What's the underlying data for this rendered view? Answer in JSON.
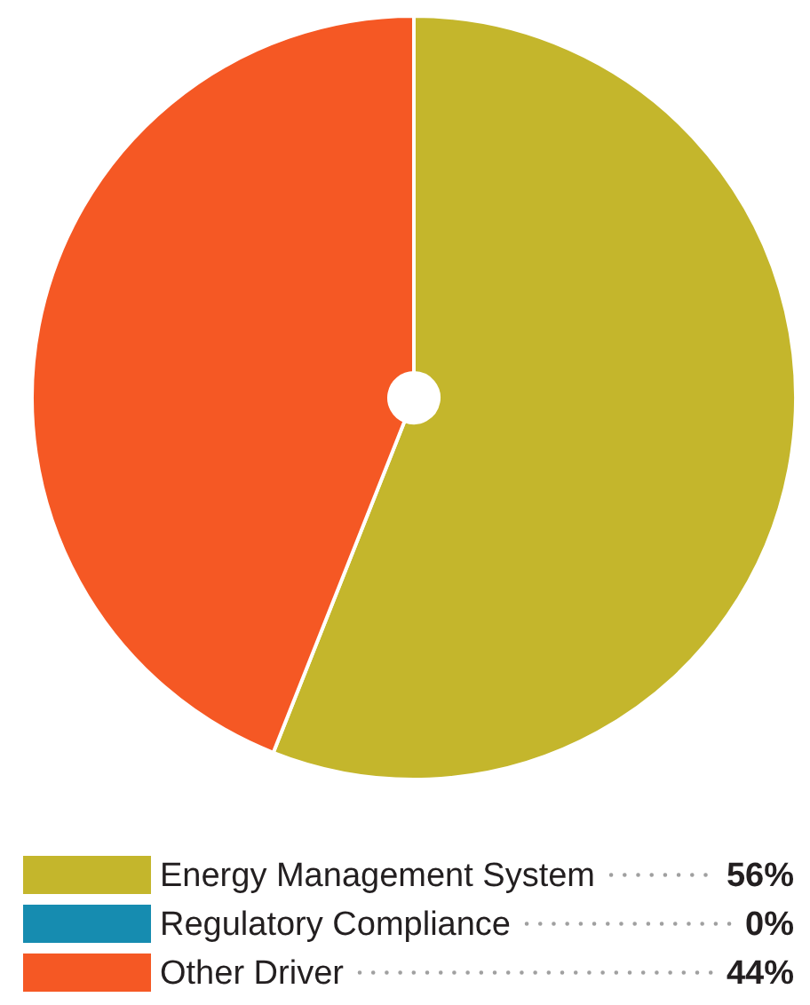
{
  "chart_data": {
    "type": "pie",
    "categories": [
      "Energy Management System",
      "Regulatory Compliance",
      "Other Driver"
    ],
    "values": [
      56,
      0,
      44
    ],
    "value_labels": [
      "56%",
      "0%",
      "44%"
    ],
    "colors": [
      "#c4b62c",
      "#168cb0",
      "#f55824"
    ],
    "legend": "bottom"
  }
}
